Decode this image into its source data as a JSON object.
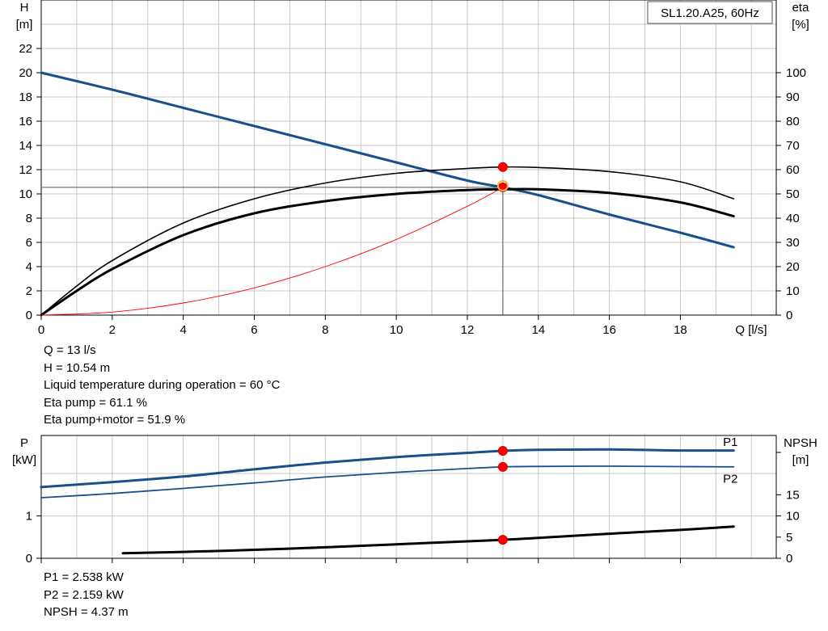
{
  "chart_data": [
    {
      "type": "line",
      "title": "SL1.20.A25, 60Hz",
      "xlabel": "Q [l/s]",
      "ylabel_left": [
        "H",
        "[m]"
      ],
      "ylabel_right": [
        "eta",
        "[%]"
      ],
      "xlim": [
        0,
        20.7
      ],
      "ylim_left": [
        0,
        26
      ],
      "ylim_right": [
        0,
        130
      ],
      "x_ticks": [
        0,
        2,
        4,
        6,
        8,
        10,
        12,
        14,
        16,
        18
      ],
      "y_ticks_left": [
        0,
        2,
        4,
        6,
        8,
        10,
        12,
        14,
        16,
        18,
        20,
        22
      ],
      "y_ticks_right": [
        0,
        10,
        20,
        30,
        40,
        50,
        60,
        70,
        80,
        90,
        100
      ],
      "grid": true,
      "series": [
        {
          "axis": "left",
          "color": "#1a4f8a",
          "width": 3,
          "x": [
            0,
            2,
            4,
            6,
            8,
            10,
            12,
            13,
            14,
            16,
            18,
            19.5
          ],
          "y": [
            20.0,
            18.6,
            17.1,
            15.6,
            14.1,
            12.6,
            11.1,
            10.54,
            9.9,
            8.3,
            6.8,
            5.6
          ]
        },
        {
          "axis": "right",
          "color": "#000000",
          "width": 1.6,
          "x": [
            0,
            1,
            2,
            4,
            6,
            8,
            10,
            12,
            13,
            14,
            16,
            18,
            19.5
          ],
          "y": [
            0,
            12,
            22.5,
            38,
            48,
            54.5,
            58.5,
            60.5,
            61.1,
            60.9,
            59.2,
            55,
            48
          ]
        },
        {
          "axis": "right",
          "color": "#000000",
          "width": 3,
          "x": [
            0,
            1,
            2,
            4,
            6,
            8,
            10,
            12,
            13,
            14,
            16,
            18,
            19.5
          ],
          "y": [
            0,
            10,
            19,
            33,
            42,
            47,
            50,
            51.6,
            51.9,
            51.9,
            50.4,
            46.5,
            40.8
          ]
        },
        {
          "axis": "left",
          "color": "#ff0000",
          "width": 0.9,
          "x": [
            0,
            2,
            4,
            6,
            8,
            10,
            12,
            13
          ],
          "y": [
            0,
            0.25,
            1.0,
            2.25,
            4.0,
            6.24,
            8.98,
            10.54
          ]
        }
      ],
      "guide_lines": {
        "x": 13,
        "y": 10.54
      },
      "markers": [
        {
          "axis": "right",
          "x": 13,
          "y": 61.1,
          "color": "#ff0000"
        },
        {
          "axis": "left",
          "x": 13,
          "y": 10.54,
          "color": "#ff0000"
        },
        {
          "axis": "left",
          "x": 13,
          "y": 10.54,
          "color": "#e8b84a",
          "ring": true
        }
      ]
    },
    {
      "type": "line",
      "ylabel_left": [
        "P",
        "[kW]"
      ],
      "ylabel_right": [
        "NPSH",
        "[m]"
      ],
      "xlim": [
        0,
        20.7
      ],
      "ylim_left": [
        0,
        2.9
      ],
      "ylim_right": [
        0,
        29
      ],
      "x_ticks": [
        0,
        2,
        4,
        6,
        8,
        10,
        12,
        14,
        16,
        18
      ],
      "y_ticks_left": [
        0,
        1
      ],
      "y_ticks_right": [
        0,
        5,
        10,
        15
      ],
      "y_minor_right": [
        25
      ],
      "grid": true,
      "series": [
        {
          "name": "P1",
          "axis": "left",
          "color": "#1a4f8a",
          "width": 3,
          "x": [
            0,
            2,
            4,
            6,
            8,
            10,
            12,
            13,
            14,
            16,
            18,
            19.5
          ],
          "y": [
            1.68,
            1.8,
            1.93,
            2.1,
            2.26,
            2.39,
            2.49,
            2.538,
            2.56,
            2.57,
            2.545,
            2.545
          ]
        },
        {
          "name": "P2",
          "axis": "left",
          "color": "#1a4f8a",
          "width": 1.8,
          "x": [
            0,
            2,
            4,
            6,
            8,
            10,
            12,
            13,
            14,
            16,
            18,
            19.5
          ],
          "y": [
            1.43,
            1.53,
            1.65,
            1.78,
            1.92,
            2.03,
            2.12,
            2.159,
            2.17,
            2.175,
            2.165,
            2.16
          ]
        },
        {
          "name": "NPSH",
          "axis": "right",
          "color": "#000000",
          "width": 3,
          "x": [
            2.3,
            4,
            6,
            8,
            10,
            12,
            13,
            14,
            16,
            18,
            19.5
          ],
          "y": [
            1.2,
            1.5,
            2.0,
            2.6,
            3.3,
            4.0,
            4.37,
            4.8,
            5.8,
            6.7,
            7.5
          ]
        }
      ],
      "series_labels": [
        {
          "text": "P1",
          "x": 19.2,
          "y": 2.75,
          "axis": "left"
        },
        {
          "text": "P2",
          "x": 19.2,
          "y": 1.88,
          "axis": "left"
        }
      ],
      "markers": [
        {
          "axis": "left",
          "x": 13,
          "y": 2.538,
          "color": "#ff0000"
        },
        {
          "axis": "left",
          "x": 13,
          "y": 2.159,
          "color": "#ff0000"
        },
        {
          "axis": "right",
          "x": 13,
          "y": 4.37,
          "color": "#ff0000"
        }
      ]
    }
  ],
  "info_top": [
    "Q = 13 l/s",
    "H = 10.54 m",
    "Liquid temperature during operation = 60 °C",
    "Eta pump = 61.1 %",
    "Eta pump+motor = 51.9 %"
  ],
  "info_bottom": [
    "P1 = 2.538 kW",
    "P2 = 2.159 kW",
    "NPSH = 4.37 m"
  ]
}
